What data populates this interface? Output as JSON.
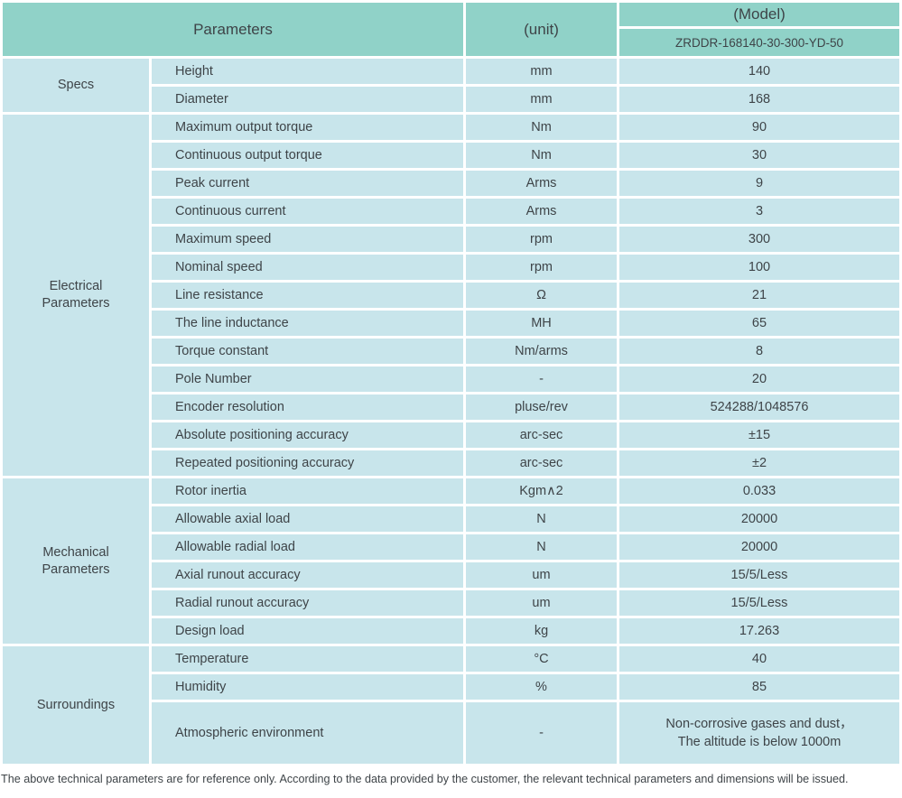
{
  "colors": {
    "header_bg": "#90d2c8",
    "cell_bg": "#c8e5eb",
    "gutter": "#ffffff",
    "text": "#3e4448"
  },
  "table": {
    "header": {
      "parameters_label": "Parameters",
      "unit_label": "(unit)",
      "model_label": "(Model)",
      "model_number": "ZRDDR-168140-30-300-YD-50"
    },
    "sections": [
      {
        "name": "Specs",
        "rows": [
          {
            "param": "Height",
            "unit": "mm",
            "value": "140"
          },
          {
            "param": "Diameter",
            "unit": "mm",
            "value": "168"
          }
        ]
      },
      {
        "name": "Electrical Parameters",
        "rows": [
          {
            "param": "Maximum output torque",
            "unit": "Nm",
            "value": "90"
          },
          {
            "param": "Continuous output torque",
            "unit": "Nm",
            "value": "30"
          },
          {
            "param": "Peak current",
            "unit": "Arms",
            "value": "9"
          },
          {
            "param": "Continuous current",
            "unit": "Arms",
            "value": "3"
          },
          {
            "param": "Maximum speed",
            "unit": "rpm",
            "value": "300"
          },
          {
            "param": "Nominal speed",
            "unit": "rpm",
            "value": "100"
          },
          {
            "param": "Line resistance",
            "unit": "Ω",
            "value": "21"
          },
          {
            "param": "The line inductance",
            "unit": "MH",
            "value": "65"
          },
          {
            "param": "Torque constant",
            "unit": "Nm/arms",
            "value": "8"
          },
          {
            "param": "Pole Number",
            "unit": "-",
            "value": "20"
          },
          {
            "param": "Encoder resolution",
            "unit": "pluse/rev",
            "value": "524288/1048576"
          },
          {
            "param": "Absolute positioning accuracy",
            "unit": "arc-sec",
            "value": "±15"
          },
          {
            "param": "Repeated positioning accuracy",
            "unit": "arc-sec",
            "value": "±2"
          }
        ]
      },
      {
        "name": "Mechanical Parameters",
        "rows": [
          {
            "param": "Rotor inertia",
            "unit": "Kgm∧2",
            "value": "0.033"
          },
          {
            "param": "Allowable axial load",
            "unit": "N",
            "value": "20000"
          },
          {
            "param": "Allowable radial load",
            "unit": "N",
            "value": "20000"
          },
          {
            "param": "Axial runout accuracy",
            "unit": "um",
            "value": "15/5/Less"
          },
          {
            "param": "Radial runout accuracy",
            "unit": "um",
            "value": "15/5/Less"
          },
          {
            "param": "Design load",
            "unit": "kg",
            "value": "17.263"
          }
        ]
      },
      {
        "name": "Surroundings",
        "rows": [
          {
            "param": "Temperature",
            "unit": "°C",
            "value": "40"
          },
          {
            "param": "Humidity",
            "unit": "%",
            "value": "85"
          },
          {
            "param": "Atmospheric environment",
            "unit": "-",
            "value": "Non-corrosive gases and dust，\nThe altitude is below 1000m",
            "tall": true
          }
        ]
      }
    ]
  },
  "footnote": "The above technical parameters are for reference only. According to the data provided by the customer, the relevant technical parameters and dimensions will be issued."
}
